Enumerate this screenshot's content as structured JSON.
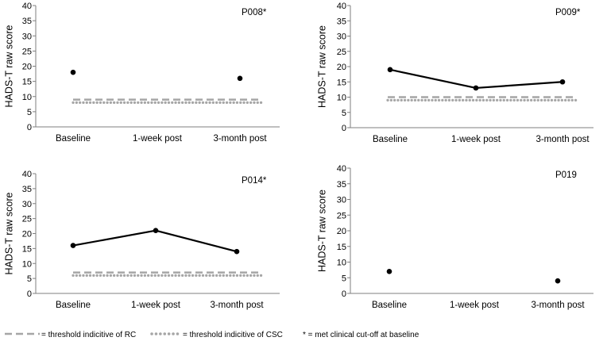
{
  "chart_data": [
    {
      "type": "line",
      "panel": "P008*",
      "ylabel": "HADS-T raw score",
      "yticks": [
        "0",
        "5",
        "10",
        "15",
        "20",
        "25",
        "30",
        "35",
        "40"
      ],
      "ylim": [
        0,
        40
      ],
      "categories": [
        "Baseline",
        "1-week post",
        "3-month post"
      ],
      "series": [
        {
          "name": "HADS-T",
          "values": [
            18,
            null,
            16
          ]
        }
      ],
      "rc_threshold": 9,
      "csc_threshold": 8
    },
    {
      "type": "line",
      "panel": "P009*",
      "ylabel": "HADS-T raw score",
      "yticks": [
        "0",
        "5",
        "10",
        "15",
        "20",
        "25",
        "30",
        "35",
        "40"
      ],
      "ylim": [
        0,
        40
      ],
      "categories": [
        "Baseline",
        "1-week post",
        "3-month post"
      ],
      "series": [
        {
          "name": "HADS-T",
          "values": [
            19,
            13,
            15
          ]
        }
      ],
      "rc_threshold": 10,
      "csc_threshold": 9
    },
    {
      "type": "line",
      "panel": "P014*",
      "ylabel": "HADS-T raw score",
      "yticks": [
        "0",
        "5",
        "10",
        "15",
        "20",
        "25",
        "30",
        "35",
        "40"
      ],
      "ylim": [
        0,
        40
      ],
      "categories": [
        "Baseline",
        "1-week post",
        "3-month post"
      ],
      "series": [
        {
          "name": "HADS-T",
          "values": [
            16,
            21,
            14
          ]
        }
      ],
      "rc_threshold": 7,
      "csc_threshold": 6
    },
    {
      "type": "line",
      "panel": "P019",
      "ylabel": "HADS-T raw score",
      "yticks": [
        "0",
        "5",
        "10",
        "15",
        "20",
        "25",
        "30",
        "35",
        "40"
      ],
      "ylim": [
        0,
        40
      ],
      "categories": [
        "Baseline",
        "1-week post",
        "3-month post"
      ],
      "series": [
        {
          "name": "HADS-T",
          "values": [
            7,
            null,
            4
          ]
        }
      ],
      "rc_threshold": null,
      "csc_threshold": null
    }
  ],
  "legend": {
    "rc_label": "= threshold indicitive of RC",
    "csc_label": "= threshold indicitive of CSC",
    "star_label": "* = met clinical cut-off at baseline"
  },
  "colors": {
    "line": "#000000",
    "rc": "#a6a6a6",
    "csc": "#a6a6a6",
    "axis": "#7f7f7f"
  }
}
